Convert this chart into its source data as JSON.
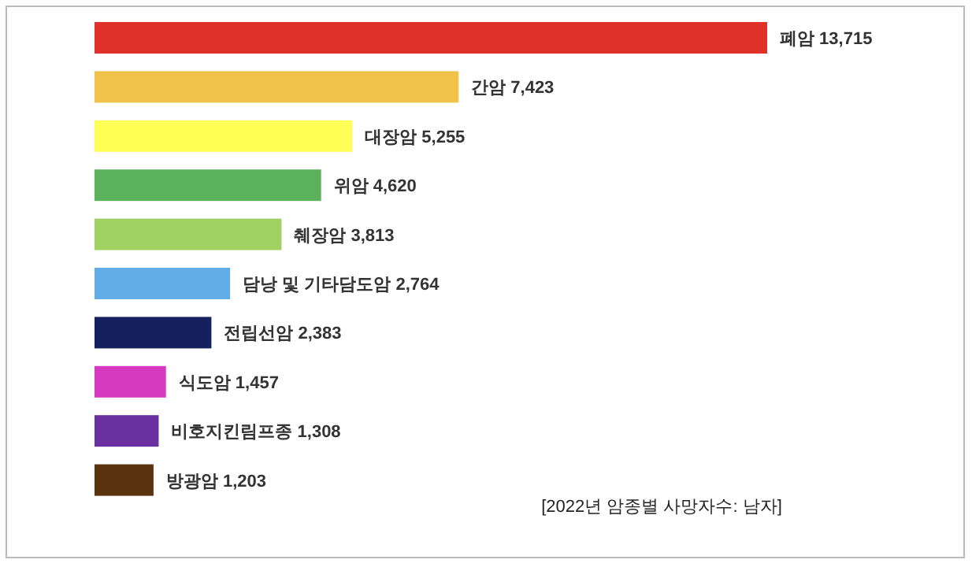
{
  "chart_data": {
    "type": "bar",
    "orientation": "horizontal",
    "categories": [
      null,
      null,
      null,
      null,
      null,
      null,
      null,
      null,
      null,
      null
    ],
    "values": [
      13715,
      7423,
      5255,
      4620,
      3813,
      2764,
      2383,
      1457,
      1308,
      1203
    ],
    "value_labels": [
      "폐암 13,715",
      "간암 7,423",
      "대장암 5,255",
      "위암 4,620",
      "췌장암 3,813",
      "담낭 및 기타담도암 2,764",
      "전립선암 2,383",
      "식도암 1,457",
      "비호지킨림프종 1,308",
      "방광암 1,203"
    ],
    "colors": [
      "#e0302a",
      "#f0c248",
      "#ffff55",
      "#5cb15c",
      "#a2d163",
      "#62ade8",
      "#14215e",
      "#d63ac0",
      "#6a2f9e",
      "#5b3210"
    ],
    "annotations": [
      "[2022년 암종별 사망자수: 남자]"
    ]
  }
}
